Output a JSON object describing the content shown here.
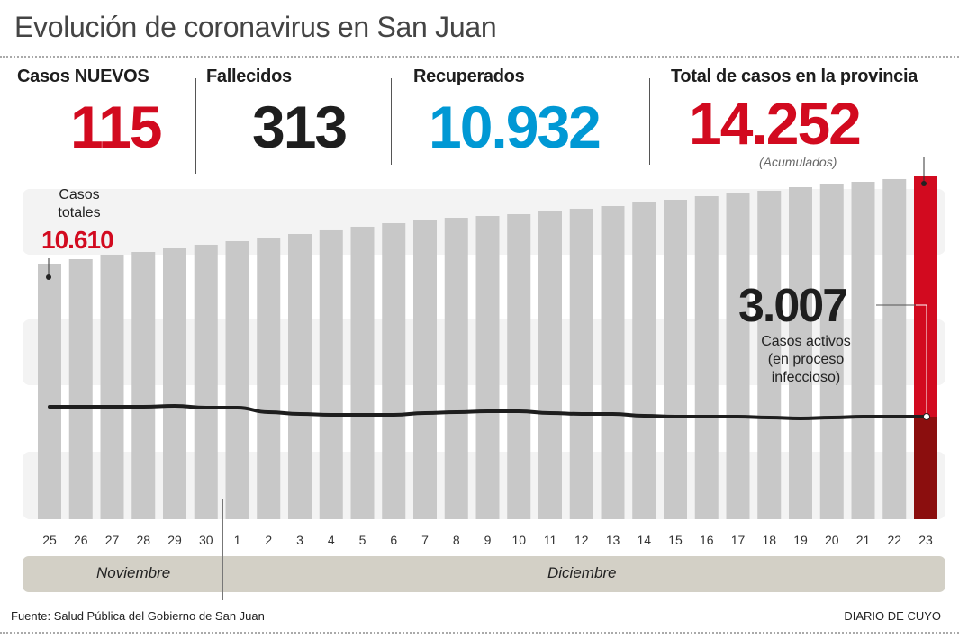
{
  "title": "Evolución de coronavirus en San Juan",
  "stats": {
    "new_cases": {
      "label": "Casos NUEVOS",
      "value": "115",
      "color": "#d20a1f"
    },
    "deaths": {
      "label": "Fallecidos",
      "value": "313",
      "color": "#1e1e1e"
    },
    "recovered": {
      "label": "Recuperados",
      "value": "10.932",
      "color": "#0098d4"
    },
    "total": {
      "label": "Total de casos en la provincia",
      "value": "14.252",
      "note": "(Acumulados)",
      "color": "#d20a1f"
    }
  },
  "callouts": {
    "first_total": {
      "label_line1": "Casos",
      "label_line2": "totales",
      "value": "10.610"
    },
    "active": {
      "value": "3.007",
      "line1": "Casos activos",
      "line2": "(en proceso",
      "line3": "infeccioso)"
    }
  },
  "months": {
    "november": "Noviembre",
    "december": "Diciembre"
  },
  "footer": {
    "source": "Fuente: Salud Pública del Gobierno de San Juan",
    "brand": "DIARIO DE CUYO"
  },
  "colors": {
    "bar": "#c8c8c8",
    "highlight": "#d20a1f",
    "highlight_dark": "#8b0e0e",
    "band": "#f3f3f3",
    "line": "#1e1e1e"
  },
  "chart_data": {
    "type": "bar",
    "title": "Evolución de coronavirus en San Juan",
    "xlabel": "",
    "ylabel": "",
    "grid": false,
    "categories": [
      "25",
      "26",
      "27",
      "28",
      "29",
      "30",
      "1",
      "2",
      "3",
      "4",
      "5",
      "6",
      "7",
      "8",
      "9",
      "10",
      "11",
      "12",
      "13",
      "14",
      "15",
      "16",
      "17",
      "18",
      "19",
      "20",
      "21",
      "22",
      "23"
    ],
    "month_groups": [
      {
        "name": "Noviembre",
        "from": "25",
        "to": "30"
      },
      {
        "name": "Diciembre",
        "from": "1",
        "to": "23"
      }
    ],
    "series": [
      {
        "name": "Casos totales (acumulados)",
        "type": "bar",
        "values": [
          10610,
          10798,
          10986,
          11098,
          11248,
          11399,
          11549,
          11699,
          11849,
          12000,
          12150,
          12300,
          12412,
          12525,
          12600,
          12675,
          12788,
          12901,
          13013,
          13163,
          13276,
          13426,
          13539,
          13652,
          13802,
          13914,
          14027,
          14140,
          14252
        ]
      },
      {
        "name": "Casos activos",
        "type": "line",
        "values": [
          3420,
          3420,
          3420,
          3420,
          3458,
          3383,
          3383,
          3195,
          3120,
          3082,
          3082,
          3082,
          3157,
          3195,
          3232,
          3232,
          3157,
          3120,
          3120,
          3045,
          3007,
          3007,
          3007,
          2969,
          2932,
          2969,
          3007,
          3007,
          3007
        ]
      }
    ],
    "ylim": [
      0,
      14252
    ],
    "annotations": [
      "Casos totales 10.610",
      "3.007 Casos activos (en proceso infeccioso)"
    ]
  }
}
